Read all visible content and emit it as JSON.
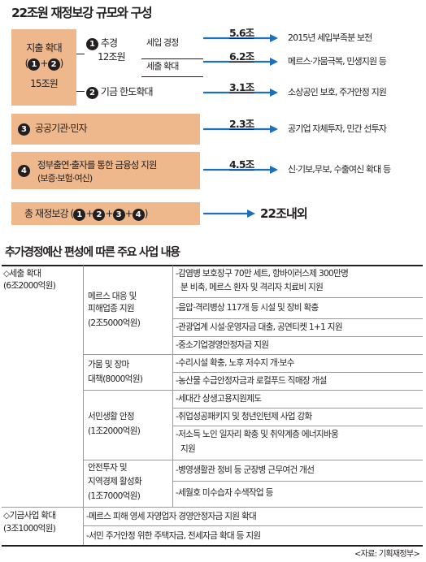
{
  "diagram": {
    "title": "22조원 재정보강 규모와 구성",
    "box1": {
      "title": "지출 확대",
      "circle1": "1",
      "plus": "+",
      "circle2": "2",
      "amount": "15조원"
    },
    "supp": {
      "circle": "1",
      "label_line1": "추경",
      "label_line2": "12조원"
    },
    "rows": [
      {
        "label": "세입 경정",
        "value": "5.6조",
        "result": "2015년 세입부족분 보전"
      },
      {
        "label": "세출 확대",
        "value": "6.2조",
        "result": "메르스·가뭄극복, 민생지원 등"
      },
      {
        "circle": "2",
        "label": "기금 한도확대",
        "value": "3.1조",
        "result": "소상공인 보호, 주거안정 지원"
      },
      {
        "circle": "3",
        "label": "공공기관·민자",
        "value": "2.3조",
        "result": "공기업 자체투자, 민간 선투자"
      },
      {
        "circle": "4",
        "label_line1": "정부출연·출자를 통한 금융성 지원",
        "label_line2": "(보증·보험·여신)",
        "value": "4.5조",
        "result": "신·기보,무보, 수출여신 확대 등"
      }
    ],
    "total": {
      "label": "총 재정보강 (",
      "c1": "1",
      "c2": "2",
      "c3": "3",
      "c4": "4",
      "plus": "+",
      "close": ")",
      "value": "22조내외"
    }
  },
  "table": {
    "title": "추가경정예산 편성에 따른 주요 사업 내용",
    "sections": [
      {
        "name": "◇세출 확대",
        "amount": "(6조2000억원)",
        "groups": [
          {
            "name_lines": [
              "메르스 대응 및",
              "피해업종 지원",
              "(2조5000억원)"
            ],
            "items": [
              [
                "-감염병 보호장구 70만 세트, 항바이러스제 300만명",
                "분 비축, 메르스 환자 및 격리자 치료비 지원"
              ],
              [
                "-음압·격리병상 117개 등 시설 및 장비 확충"
              ],
              [
                "-관광업계 시설·운영자금 대출, 공연티켓 1+1 지원"
              ],
              [
                "-중소기업경영안정자금 지원"
              ]
            ]
          },
          {
            "name_lines": [
              "가뭄 및 장마",
              "대책(8000억원)"
            ],
            "items": [
              [
                "-수리시설 확충, 노후 저수지 개·보수"
              ],
              [
                "-농산물 수급안정자금과 로컬푸드 직매장 개설"
              ]
            ]
          },
          {
            "name_lines": [
              "서민생활 안정",
              "(1조2000억원)"
            ],
            "items": [
              [
                "-세대간 상생고용지원제도"
              ],
              [
                "-취업성공패키지 및 청년인턴제 사업 강화"
              ],
              [
                "-저소득 노인 일자리 확충 및 취약계층 에너지바웅",
                "지원"
              ]
            ]
          },
          {
            "name_lines": [
              "안전투자 및",
              "지역경제 활성화",
              "(1조7000억원)"
            ],
            "items": [
              [
                "-병영생활관 정비 등 군장병 근무여건 개선"
              ],
              [
                "-세월호 미수습자 수색작업 등"
              ]
            ]
          }
        ]
      },
      {
        "name": "◇기금사업 확대",
        "amount": "(3조1000억원)",
        "items": [
          "-메르스 피해 영세 자영업자 경영안정자금 지원 확대",
          "-서민 주거안정 위한 주택자금, 전세자금 확대 등 지원"
        ]
      }
    ],
    "source": "<자료: 기획재정부>"
  },
  "colors": {
    "box": "#eeb88c",
    "arrow": "#1d6fb8",
    "text": "#231f20",
    "rule": "#9a9a9a"
  }
}
